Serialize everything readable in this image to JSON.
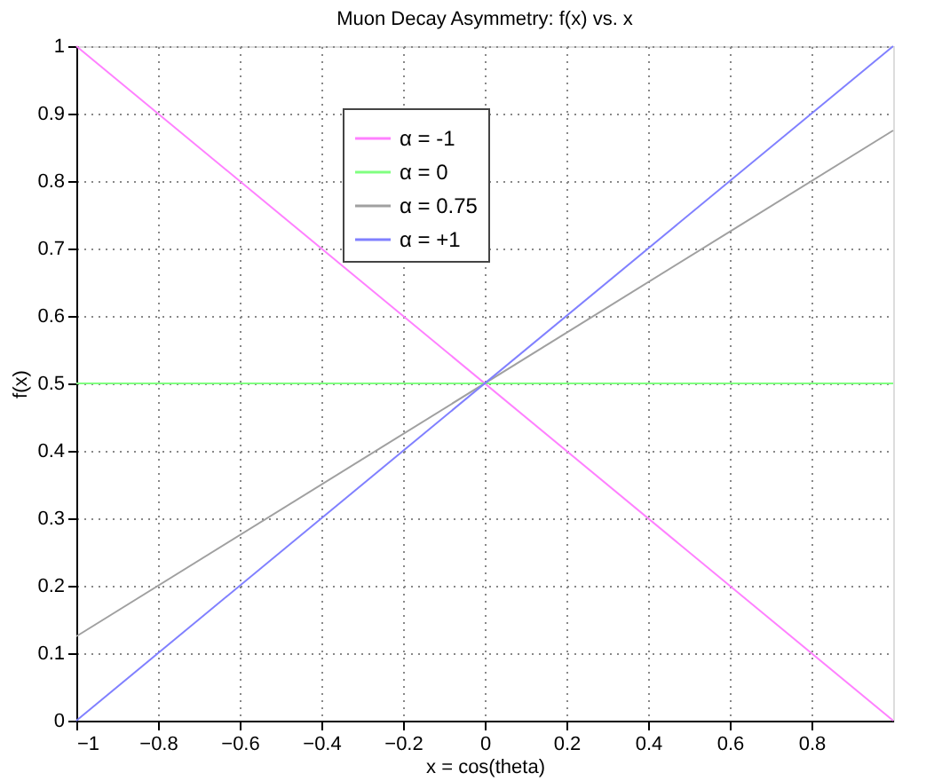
{
  "chart_data": {
    "type": "line",
    "title": "Muon Decay Asymmetry: f(x) vs. x",
    "xlabel": "x = cos(theta)",
    "ylabel": "f(x)",
    "x": [
      -1,
      1
    ],
    "series": [
      {
        "name": "α = -1",
        "color": "#ff80ff",
        "values": [
          1,
          0
        ]
      },
      {
        "name": "α =  0",
        "color": "#80ff80",
        "values": [
          0.5,
          0.5
        ]
      },
      {
        "name": "α = 0.75",
        "color": "#a0a0a0",
        "values": [
          0.125,
          0.875
        ]
      },
      {
        "name": "α = +1",
        "color": "#8080ff",
        "values": [
          0,
          1
        ]
      }
    ],
    "xlim": [
      -1,
      1
    ],
    "xticks": [
      -1,
      -0.8,
      -0.6,
      -0.4,
      -0.2,
      0,
      0.2,
      0.4,
      0.6,
      0.8
    ],
    "ylim": [
      0,
      1
    ],
    "yticks": [
      0,
      0.1,
      0.2,
      0.3,
      0.4,
      0.5,
      0.6,
      0.7,
      0.8,
      0.9,
      1
    ],
    "grid": true,
    "legend": "top",
    "marker": "none",
    "line_style": "solid"
  }
}
